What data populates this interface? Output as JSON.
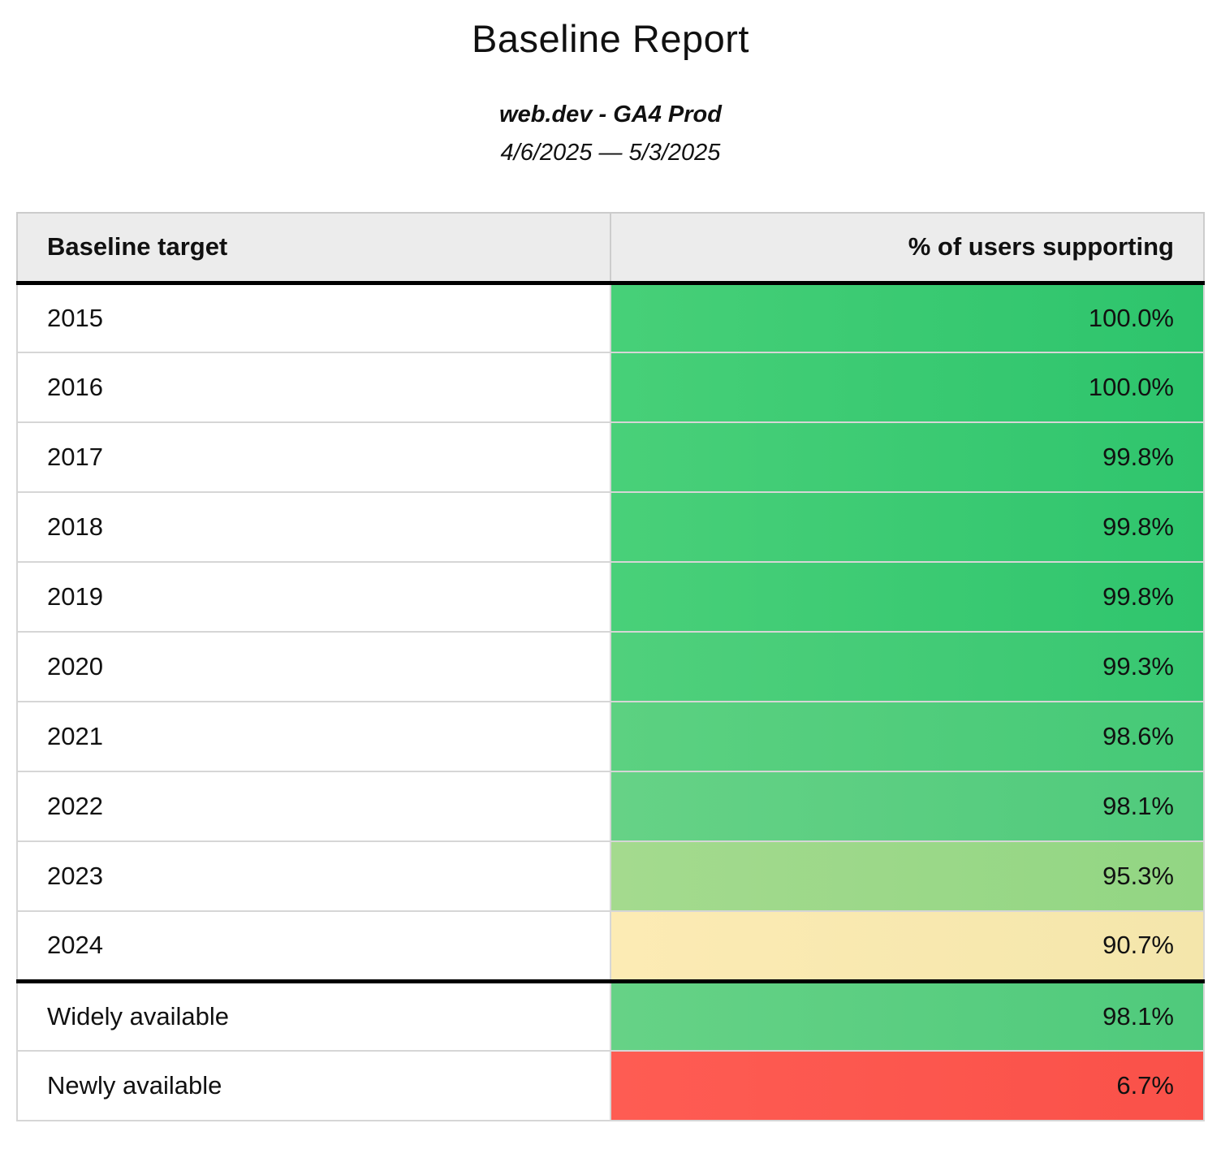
{
  "report": {
    "title": "Baseline Report",
    "subtitle": "web.dev - GA4 Prod",
    "date_range": "4/6/2025 — 5/3/2025"
  },
  "colors": {
    "header_background": "#ececec",
    "grid_border": "#cccccc",
    "grid_border_light": "#d6d6d6",
    "section_divider": "#000000",
    "text": "#111111"
  },
  "table": {
    "columns": [
      "Baseline target",
      "% of users supporting"
    ],
    "rows": [
      {
        "target": "2015",
        "value": "100.0%",
        "color_left": "#47d078",
        "color_right": "#2dc46c"
      },
      {
        "target": "2016",
        "value": "100.0%",
        "color_left": "#47d078",
        "color_right": "#2dc46c"
      },
      {
        "target": "2017",
        "value": "99.8%",
        "color_left": "#49d079",
        "color_right": "#2fc56d"
      },
      {
        "target": "2018",
        "value": "99.8%",
        "color_left": "#49d079",
        "color_right": "#2fc56d"
      },
      {
        "target": "2019",
        "value": "99.8%",
        "color_left": "#49d079",
        "color_right": "#2fc56d"
      },
      {
        "target": "2020",
        "value": "99.3%",
        "color_left": "#50d07c",
        "color_right": "#37c771"
      },
      {
        "target": "2021",
        "value": "98.6%",
        "color_left": "#5cd181",
        "color_right": "#45c977"
      },
      {
        "target": "2022",
        "value": "98.1%",
        "color_left": "#66d286",
        "color_right": "#4fca7c"
      },
      {
        "target": "2023",
        "value": "95.3%",
        "color_left": "#a4da8e",
        "color_right": "#92d683"
      },
      {
        "target": "2024",
        "value": "90.7%",
        "color_left": "#fcebb4",
        "color_right": "#f4e6ab"
      },
      {
        "target": "Widely available",
        "value": "98.1%",
        "color_left": "#66d286",
        "color_right": "#4fca7c",
        "section_start": true
      },
      {
        "target": "Newly available",
        "value": "6.7%",
        "color_left": "#fe5c53",
        "color_right": "#fa5149"
      }
    ]
  },
  "chart_data": {
    "type": "table",
    "title": "Baseline Report",
    "subtitle": "web.dev - GA4 Prod",
    "date_range": "4/6/2025 — 5/3/2025",
    "columns": [
      "Baseline target",
      "% of users supporting"
    ],
    "rows": [
      [
        "2015",
        100.0
      ],
      [
        "2016",
        100.0
      ],
      [
        "2017",
        99.8
      ],
      [
        "2018",
        99.8
      ],
      [
        "2019",
        99.8
      ],
      [
        "2020",
        99.3
      ],
      [
        "2021",
        98.6
      ],
      [
        "2022",
        98.1
      ],
      [
        "2023",
        95.3
      ],
      [
        "2024",
        90.7
      ],
      [
        "Widely available",
        98.1
      ],
      [
        "Newly available",
        6.7
      ]
    ],
    "value_color_scale": "green (high support) → yellow (moderate) → red (low support)"
  }
}
